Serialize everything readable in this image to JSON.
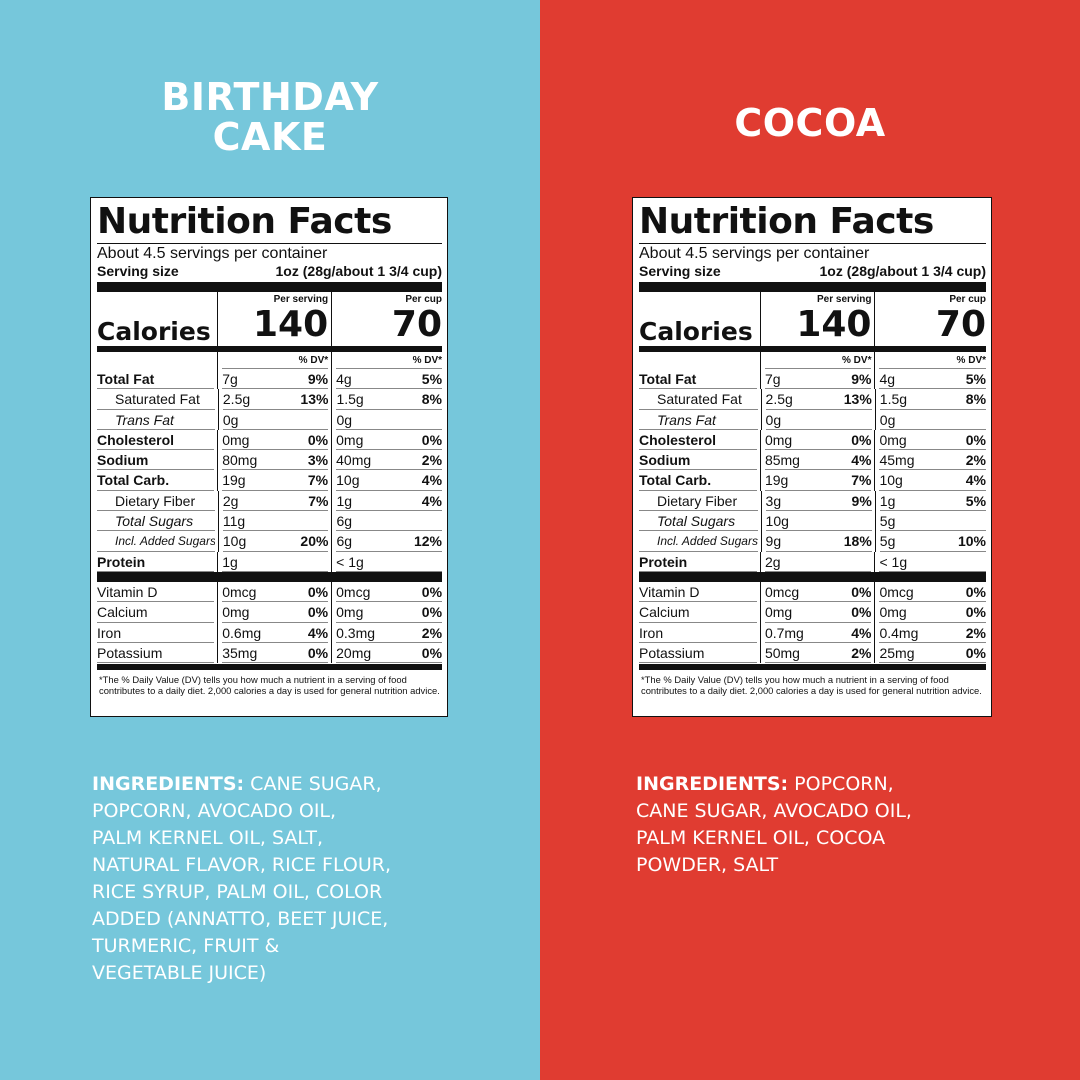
{
  "left": {
    "bg": "#76c7db",
    "title_lines": [
      "BIRTHDAY",
      "CAKE"
    ],
    "facts": {
      "title": "Nutrition Facts",
      "servings": "About 4.5 servings per container",
      "serving_size_label": "Serving size",
      "serving_size_value": "1oz (28g/about 1 3/4 cup)",
      "calories_label": "Calories",
      "per_serving_label": "Per serving",
      "per_cup_label": "Per cup",
      "calories_serving": "140",
      "calories_cup": "70",
      "dv_label": "% DV*",
      "rows": [
        {
          "name": "Total Fat",
          "style": "b",
          "a": "7g",
          "ap": "9%",
          "b": "4g",
          "bp": "5%"
        },
        {
          "name": "Saturated Fat",
          "style": "ind1",
          "a": "2.5g",
          "ap": "13%",
          "b": "1.5g",
          "bp": "8%"
        },
        {
          "name": "Trans Fat",
          "style": "ind2",
          "a": "0g",
          "ap": "",
          "b": "0g",
          "bp": ""
        },
        {
          "name": "Cholesterol",
          "style": "b",
          "a": "0mg",
          "ap": "0%",
          "b": "0mg",
          "bp": "0%"
        },
        {
          "name": "Sodium",
          "style": "b",
          "a": "80mg",
          "ap": "3%",
          "b": "40mg",
          "bp": "2%"
        },
        {
          "name": "Total Carb.",
          "style": "b",
          "a": "19g",
          "ap": "7%",
          "b": "10g",
          "bp": "4%"
        },
        {
          "name": "Dietary Fiber",
          "style": "ind1",
          "a": "2g",
          "ap": "7%",
          "b": "1g",
          "bp": "4%"
        },
        {
          "name": "Total Sugars",
          "style": "ind2",
          "a": "11g",
          "ap": "",
          "b": "6g",
          "bp": ""
        },
        {
          "name": "Incl. Added Sugars",
          "style": "ind3",
          "a": "10g",
          "ap": "20%",
          "b": "6g",
          "bp": "12%"
        },
        {
          "name": "Protein",
          "style": "b",
          "a": "1g",
          "ap": "",
          "b": "< 1g",
          "bp": ""
        }
      ],
      "vitamins": [
        {
          "name": "Vitamin D",
          "a": "0mcg",
          "ap": "0%",
          "b": "0mcg",
          "bp": "0%"
        },
        {
          "name": "Calcium",
          "a": "0mg",
          "ap": "0%",
          "b": "0mg",
          "bp": "0%"
        },
        {
          "name": "Iron",
          "a": "0.6mg",
          "ap": "4%",
          "b": "0.3mg",
          "bp": "2%"
        },
        {
          "name": "Potassium",
          "a": "35mg",
          "ap": "0%",
          "b": "20mg",
          "bp": "0%"
        }
      ],
      "footnote": "*The % Daily Value (DV) tells you how much a nutrient in a serving of food contributes to a daily diet. 2,000 calories a day is used for general nutrition advice."
    },
    "ingredients_label": "INGREDIENTS:",
    "ingredients_lines": [
      " CANE SUGAR,",
      "POPCORN, AVOCADO OIL,",
      "PALM KERNEL OIL, SALT,",
      "NATURAL FLAVOR, RICE FLOUR,",
      "RICE SYRUP, PALM OIL, COLOR",
      "ADDED (ANNATTO, BEET JUICE,",
      "TURMERIC, FRUIT &",
      "VEGETABLE JUICE)"
    ]
  },
  "right": {
    "bg": "#e03c31",
    "title_lines": [
      "COCOA"
    ],
    "facts": {
      "title": "Nutrition Facts",
      "servings": "About 4.5 servings per container",
      "serving_size_label": "Serving size",
      "serving_size_value": "1oz (28g/about 1 3/4 cup)",
      "calories_label": "Calories",
      "per_serving_label": "Per serving",
      "per_cup_label": "Per cup",
      "calories_serving": "140",
      "calories_cup": "70",
      "dv_label": "% DV*",
      "rows": [
        {
          "name": "Total Fat",
          "style": "b",
          "a": "7g",
          "ap": "9%",
          "b": "4g",
          "bp": "5%"
        },
        {
          "name": "Saturated Fat",
          "style": "ind1",
          "a": "2.5g",
          "ap": "13%",
          "b": "1.5g",
          "bp": "8%"
        },
        {
          "name": "Trans Fat",
          "style": "ind2",
          "a": "0g",
          "ap": "",
          "b": "0g",
          "bp": ""
        },
        {
          "name": "Cholesterol",
          "style": "b",
          "a": "0mg",
          "ap": "0%",
          "b": "0mg",
          "bp": "0%"
        },
        {
          "name": "Sodium",
          "style": "b",
          "a": "85mg",
          "ap": "4%",
          "b": "45mg",
          "bp": "2%"
        },
        {
          "name": "Total Carb.",
          "style": "b",
          "a": "19g",
          "ap": "7%",
          "b": "10g",
          "bp": "4%"
        },
        {
          "name": "Dietary Fiber",
          "style": "ind1",
          "a": "3g",
          "ap": "9%",
          "b": "1g",
          "bp": "5%"
        },
        {
          "name": "Total Sugars",
          "style": "ind2",
          "a": "10g",
          "ap": "",
          "b": "5g",
          "bp": ""
        },
        {
          "name": "Incl. Added Sugars",
          "style": "ind3",
          "a": "9g",
          "ap": "18%",
          "b": "5g",
          "bp": "10%"
        },
        {
          "name": "Protein",
          "style": "b",
          "a": "2g",
          "ap": "",
          "b": "< 1g",
          "bp": ""
        }
      ],
      "vitamins": [
        {
          "name": "Vitamin D",
          "a": "0mcg",
          "ap": "0%",
          "b": "0mcg",
          "bp": "0%"
        },
        {
          "name": "Calcium",
          "a": "0mg",
          "ap": "0%",
          "b": "0mg",
          "bp": "0%"
        },
        {
          "name": "Iron",
          "a": "0.7mg",
          "ap": "4%",
          "b": "0.4mg",
          "bp": "2%"
        },
        {
          "name": "Potassium",
          "a": "50mg",
          "ap": "2%",
          "b": "25mg",
          "bp": "0%"
        }
      ],
      "footnote": "*The % Daily Value (DV) tells you how much a nutrient in a serving of food contributes to a daily diet. 2,000 calories a day is used for general nutrition advice."
    },
    "ingredients_label": "INGREDIENTS:",
    "ingredients_lines": [
      " POPCORN,",
      "CANE SUGAR, AVOCADO OIL,",
      "PALM KERNEL OIL, COCOA",
      "POWDER, SALT"
    ]
  }
}
